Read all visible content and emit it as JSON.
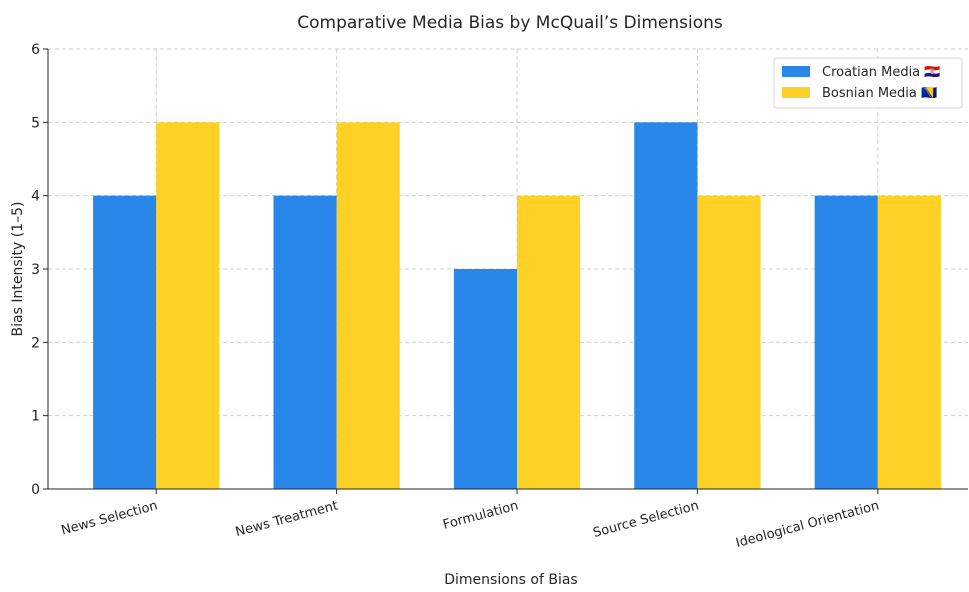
{
  "chart_data": {
    "type": "bar",
    "title": "Comparative Media Bias by McQuail’s Dimensions",
    "xlabel": "Dimensions of Bias",
    "ylabel": "Bias Intensity (1–5)",
    "categories": [
      "News Selection",
      "News Treatment",
      "Formulation",
      "Source Selection",
      "Ideological Orientation"
    ],
    "series": [
      {
        "name": "Croatian Media 🇭🇷",
        "color": "#2887e8",
        "values": [
          4,
          4,
          3,
          5,
          4
        ]
      },
      {
        "name": "Bosnian Media 🇧🇦",
        "color": "#fdd126",
        "values": [
          5,
          5,
          4,
          4,
          4
        ]
      }
    ],
    "ylim": [
      0,
      6
    ],
    "yticks": [
      0,
      1,
      2,
      3,
      4,
      5,
      6
    ],
    "grid": true,
    "legend_position": "top-right"
  }
}
